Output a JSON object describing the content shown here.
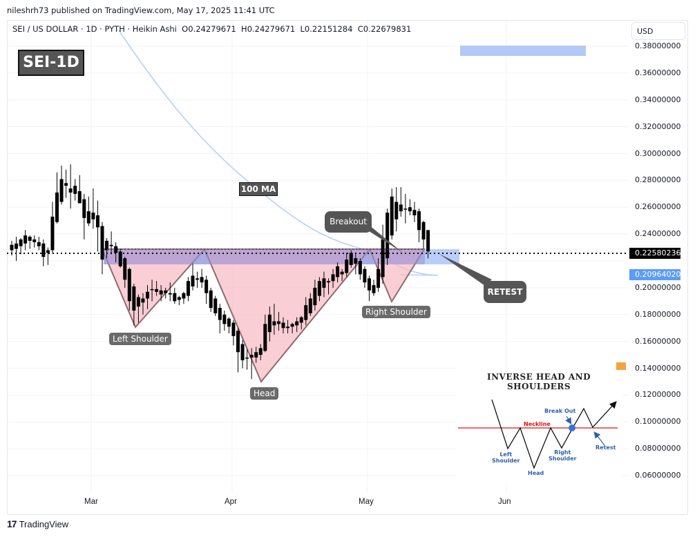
{
  "header": {
    "published": "nileshrh73 published on TradingView.com, May 17, 2025 11:41 UTC",
    "symbol_line": "SEI / US DOLLAR · 1D · PYTH · Heikin Ashi  O0.24279671  H0.24279671  L0.22151284  C0.22679831"
  },
  "price_scale": {
    "currency": "USD",
    "ticks": [
      "0.38000000",
      "0.36000000",
      "0.34000000",
      "0.32000000",
      "0.30000000",
      "0.28000000",
      "0.26000000",
      "0.24000000",
      "0.22000000",
      "0.20000000",
      "0.18000000",
      "0.16000000",
      "0.14000000",
      "0.12000000",
      "0.10000000",
      "0.08000000",
      "0.06000000"
    ],
    "last_price": "0.22580236",
    "last_price_color": "#000000",
    "ma_value": "0.20964020",
    "ma_value_color": "#5b9cf6"
  },
  "time_scale": {
    "labels": [
      "Mar",
      "Apr",
      "May",
      "Jun"
    ]
  },
  "annotations": {
    "title_badge": "SEI-1D",
    "ma_badge": "100 MA",
    "left_shoulder": "Left Shoulder",
    "head": "Head",
    "right_shoulder": "Right Shoulder",
    "breakout": "Breakout",
    "retest": "RETEST"
  },
  "inset": {
    "title_line1": "INVERSE HEAD AND",
    "title_line2": "SHOULDERS",
    "neckline": "Neckline",
    "break_out": "Break Out",
    "left_shoulder_1": "Left",
    "left_shoulder_2": "Shoulder",
    "head": "Head",
    "right_shoulder_1": "Right",
    "right_shoulder_2": "Shoulder",
    "retest": "Retest"
  },
  "branding": {
    "logo": "TradingView"
  },
  "colors": {
    "candle": "#000000",
    "pattern_fill": "#f7b9c2",
    "neckline_zone": "#9aa9f0",
    "target_zone": "#b4c8f8",
    "ma_line": "#b8d0f5",
    "grid": "#f0f3fa"
  },
  "chart_data": {
    "type": "candlestick",
    "title": "SEI / US DOLLAR · 1D · PYTH · Heikin Ashi",
    "xlabel": "",
    "ylabel": "USD",
    "ylim": [
      0.05,
      0.39
    ],
    "x_tick_labels": [
      "Mar",
      "Apr",
      "May",
      "Jun"
    ],
    "last_ohlc": {
      "open": 0.24279671,
      "high": 0.24279671,
      "low": 0.22151284,
      "close": 0.22679831
    },
    "last_price": 0.22580236,
    "ma100_last": 0.2096402,
    "neckline": 0.227,
    "pattern": "Inverse Head and Shoulders",
    "pattern_points": [
      {
        "label": "Left Shoulder",
        "date": "~Mar 10",
        "price": 0.171
      },
      {
        "label": "Head",
        "date": "~Apr 7",
        "price": 0.13
      },
      {
        "label": "Right Shoulder",
        "date": "~May 7",
        "price": 0.19
      },
      {
        "label": "Breakout",
        "date": "~May 9",
        "price": 0.228
      },
      {
        "label": "Retest",
        "date": "~May 16",
        "price": 0.226
      }
    ],
    "target_zone": [
      0.372,
      0.38
    ],
    "candles": [
      {
        "d": 0,
        "o": 0.228,
        "h": 0.235,
        "l": 0.224,
        "c": 0.232
      },
      {
        "d": 1,
        "o": 0.229,
        "h": 0.238,
        "l": 0.22,
        "c": 0.233
      },
      {
        "d": 2,
        "o": 0.231,
        "h": 0.237,
        "l": 0.225,
        "c": 0.236
      },
      {
        "d": 3,
        "o": 0.233,
        "h": 0.243,
        "l": 0.228,
        "c": 0.239
      },
      {
        "d": 4,
        "o": 0.235,
        "h": 0.239,
        "l": 0.229,
        "c": 0.238
      },
      {
        "d": 5,
        "o": 0.236,
        "h": 0.239,
        "l": 0.23,
        "c": 0.234
      },
      {
        "d": 6,
        "o": 0.234,
        "h": 0.238,
        "l": 0.228,
        "c": 0.231
      },
      {
        "d": 7,
        "o": 0.233,
        "h": 0.236,
        "l": 0.216,
        "c": 0.223
      },
      {
        "d": 8,
        "o": 0.226,
        "h": 0.23,
        "l": 0.217,
        "c": 0.228
      },
      {
        "d": 9,
        "o": 0.228,
        "h": 0.264,
        "l": 0.226,
        "c": 0.253
      },
      {
        "d": 10,
        "o": 0.249,
        "h": 0.286,
        "l": 0.248,
        "c": 0.271
      },
      {
        "d": 11,
        "o": 0.264,
        "h": 0.291,
        "l": 0.262,
        "c": 0.281
      },
      {
        "d": 12,
        "o": 0.278,
        "h": 0.288,
        "l": 0.267,
        "c": 0.276
      },
      {
        "d": 13,
        "o": 0.274,
        "h": 0.292,
        "l": 0.259,
        "c": 0.271
      },
      {
        "d": 14,
        "o": 0.276,
        "h": 0.281,
        "l": 0.265,
        "c": 0.27
      },
      {
        "d": 15,
        "o": 0.272,
        "h": 0.284,
        "l": 0.263,
        "c": 0.263
      },
      {
        "d": 16,
        "o": 0.266,
        "h": 0.27,
        "l": 0.236,
        "c": 0.252
      },
      {
        "d": 17,
        "o": 0.257,
        "h": 0.268,
        "l": 0.246,
        "c": 0.248
      },
      {
        "d": 18,
        "o": 0.256,
        "h": 0.274,
        "l": 0.244,
        "c": 0.251
      },
      {
        "d": 19,
        "o": 0.254,
        "h": 0.265,
        "l": 0.227,
        "c": 0.245
      },
      {
        "d": 20,
        "o": 0.246,
        "h": 0.249,
        "l": 0.21,
        "c": 0.221
      },
      {
        "d": 21,
        "o": 0.235,
        "h": 0.237,
        "l": 0.222,
        "c": 0.228
      },
      {
        "d": 22,
        "o": 0.232,
        "h": 0.242,
        "l": 0.225,
        "c": 0.231
      },
      {
        "d": 23,
        "o": 0.231,
        "h": 0.234,
        "l": 0.219,
        "c": 0.226
      },
      {
        "d": 24,
        "o": 0.227,
        "h": 0.229,
        "l": 0.215,
        "c": 0.216
      },
      {
        "d": 25,
        "o": 0.222,
        "h": 0.223,
        "l": 0.2,
        "c": 0.206
      },
      {
        "d": 26,
        "o": 0.214,
        "h": 0.215,
        "l": 0.183,
        "c": 0.19
      },
      {
        "d": 27,
        "o": 0.201,
        "h": 0.203,
        "l": 0.172,
        "c": 0.183
      },
      {
        "d": 28,
        "o": 0.193,
        "h": 0.195,
        "l": 0.174,
        "c": 0.186
      },
      {
        "d": 29,
        "o": 0.189,
        "h": 0.196,
        "l": 0.18,
        "c": 0.192
      },
      {
        "d": 30,
        "o": 0.192,
        "h": 0.202,
        "l": 0.184,
        "c": 0.197
      },
      {
        "d": 31,
        "o": 0.199,
        "h": 0.206,
        "l": 0.19,
        "c": 0.199
      },
      {
        "d": 32,
        "o": 0.199,
        "h": 0.205,
        "l": 0.194,
        "c": 0.197
      },
      {
        "d": 33,
        "o": 0.198,
        "h": 0.202,
        "l": 0.19,
        "c": 0.195
      },
      {
        "d": 34,
        "o": 0.196,
        "h": 0.2,
        "l": 0.192,
        "c": 0.198
      },
      {
        "d": 35,
        "o": 0.196,
        "h": 0.204,
        "l": 0.19,
        "c": 0.195
      },
      {
        "d": 36,
        "o": 0.196,
        "h": 0.2,
        "l": 0.188,
        "c": 0.19
      },
      {
        "d": 37,
        "o": 0.193,
        "h": 0.194,
        "l": 0.187,
        "c": 0.191
      },
      {
        "d": 38,
        "o": 0.192,
        "h": 0.197,
        "l": 0.188,
        "c": 0.196
      },
      {
        "d": 39,
        "o": 0.194,
        "h": 0.208,
        "l": 0.19,
        "c": 0.205
      },
      {
        "d": 40,
        "o": 0.201,
        "h": 0.218,
        "l": 0.198,
        "c": 0.209
      },
      {
        "d": 41,
        "o": 0.206,
        "h": 0.212,
        "l": 0.2,
        "c": 0.207
      },
      {
        "d": 42,
        "o": 0.208,
        "h": 0.214,
        "l": 0.2,
        "c": 0.204
      },
      {
        "d": 43,
        "o": 0.206,
        "h": 0.209,
        "l": 0.188,
        "c": 0.196
      },
      {
        "d": 44,
        "o": 0.198,
        "h": 0.2,
        "l": 0.182,
        "c": 0.185
      },
      {
        "d": 45,
        "o": 0.192,
        "h": 0.194,
        "l": 0.179,
        "c": 0.181
      },
      {
        "d": 46,
        "o": 0.185,
        "h": 0.188,
        "l": 0.166,
        "c": 0.176
      },
      {
        "d": 47,
        "o": 0.18,
        "h": 0.183,
        "l": 0.168,
        "c": 0.173
      },
      {
        "d": 48,
        "o": 0.177,
        "h": 0.178,
        "l": 0.166,
        "c": 0.171
      },
      {
        "d": 49,
        "o": 0.174,
        "h": 0.176,
        "l": 0.157,
        "c": 0.164
      },
      {
        "d": 50,
        "o": 0.168,
        "h": 0.17,
        "l": 0.137,
        "c": 0.152
      },
      {
        "d": 51,
        "o": 0.158,
        "h": 0.161,
        "l": 0.14,
        "c": 0.146
      },
      {
        "d": 52,
        "o": 0.148,
        "h": 0.154,
        "l": 0.139,
        "c": 0.148
      },
      {
        "d": 53,
        "o": 0.148,
        "h": 0.155,
        "l": 0.132,
        "c": 0.15
      },
      {
        "d": 54,
        "o": 0.148,
        "h": 0.156,
        "l": 0.144,
        "c": 0.152
      },
      {
        "d": 55,
        "o": 0.15,
        "h": 0.158,
        "l": 0.146,
        "c": 0.155
      },
      {
        "d": 56,
        "o": 0.153,
        "h": 0.18,
        "l": 0.152,
        "c": 0.173
      },
      {
        "d": 57,
        "o": 0.167,
        "h": 0.186,
        "l": 0.16,
        "c": 0.18
      },
      {
        "d": 58,
        "o": 0.175,
        "h": 0.188,
        "l": 0.165,
        "c": 0.172
      },
      {
        "d": 59,
        "o": 0.175,
        "h": 0.182,
        "l": 0.168,
        "c": 0.173
      },
      {
        "d": 60,
        "o": 0.174,
        "h": 0.178,
        "l": 0.166,
        "c": 0.17
      },
      {
        "d": 61,
        "o": 0.17,
        "h": 0.176,
        "l": 0.166,
        "c": 0.171
      },
      {
        "d": 62,
        "o": 0.171,
        "h": 0.174,
        "l": 0.166,
        "c": 0.173
      },
      {
        "d": 63,
        "o": 0.172,
        "h": 0.178,
        "l": 0.167,
        "c": 0.175
      },
      {
        "d": 64,
        "o": 0.174,
        "h": 0.179,
        "l": 0.169,
        "c": 0.178
      },
      {
        "d": 65,
        "o": 0.176,
        "h": 0.193,
        "l": 0.172,
        "c": 0.187
      },
      {
        "d": 66,
        "o": 0.181,
        "h": 0.196,
        "l": 0.179,
        "c": 0.192
      },
      {
        "d": 67,
        "o": 0.187,
        "h": 0.206,
        "l": 0.183,
        "c": 0.2
      },
      {
        "d": 68,
        "o": 0.194,
        "h": 0.208,
        "l": 0.19,
        "c": 0.205
      },
      {
        "d": 69,
        "o": 0.2,
        "h": 0.212,
        "l": 0.193,
        "c": 0.207
      },
      {
        "d": 70,
        "o": 0.204,
        "h": 0.207,
        "l": 0.195,
        "c": 0.205
      },
      {
        "d": 71,
        "o": 0.205,
        "h": 0.214,
        "l": 0.2,
        "c": 0.21
      },
      {
        "d": 72,
        "o": 0.208,
        "h": 0.219,
        "l": 0.204,
        "c": 0.216
      },
      {
        "d": 73,
        "o": 0.212,
        "h": 0.214,
        "l": 0.205,
        "c": 0.21
      },
      {
        "d": 74,
        "o": 0.211,
        "h": 0.226,
        "l": 0.208,
        "c": 0.221
      },
      {
        "d": 75,
        "o": 0.217,
        "h": 0.228,
        "l": 0.215,
        "c": 0.226
      },
      {
        "d": 76,
        "o": 0.222,
        "h": 0.225,
        "l": 0.21,
        "c": 0.218
      },
      {
        "d": 77,
        "o": 0.22,
        "h": 0.222,
        "l": 0.206,
        "c": 0.21
      },
      {
        "d": 78,
        "o": 0.214,
        "h": 0.216,
        "l": 0.2,
        "c": 0.204
      },
      {
        "d": 79,
        "o": 0.207,
        "h": 0.209,
        "l": 0.19,
        "c": 0.198
      },
      {
        "d": 80,
        "o": 0.202,
        "h": 0.206,
        "l": 0.194,
        "c": 0.196
      },
      {
        "d": 81,
        "o": 0.2,
        "h": 0.222,
        "l": 0.197,
        "c": 0.214
      },
      {
        "d": 82,
        "o": 0.208,
        "h": 0.247,
        "l": 0.203,
        "c": 0.236
      },
      {
        "d": 83,
        "o": 0.222,
        "h": 0.259,
        "l": 0.217,
        "c": 0.256
      },
      {
        "d": 84,
        "o": 0.239,
        "h": 0.274,
        "l": 0.236,
        "c": 0.268
      },
      {
        "d": 85,
        "o": 0.251,
        "h": 0.275,
        "l": 0.242,
        "c": 0.264
      },
      {
        "d": 86,
        "o": 0.257,
        "h": 0.275,
        "l": 0.253,
        "c": 0.262
      },
      {
        "d": 87,
        "o": 0.259,
        "h": 0.27,
        "l": 0.248,
        "c": 0.259
      },
      {
        "d": 88,
        "o": 0.26,
        "h": 0.266,
        "l": 0.254,
        "c": 0.257
      },
      {
        "d": 89,
        "o": 0.258,
        "h": 0.264,
        "l": 0.249,
        "c": 0.254
      },
      {
        "d": 90,
        "o": 0.257,
        "h": 0.259,
        "l": 0.234,
        "c": 0.243
      },
      {
        "d": 91,
        "o": 0.249,
        "h": 0.25,
        "l": 0.229,
        "c": 0.236
      },
      {
        "d": 92,
        "o": 0.243,
        "h": 0.243,
        "l": 0.222,
        "c": 0.227
      }
    ]
  }
}
